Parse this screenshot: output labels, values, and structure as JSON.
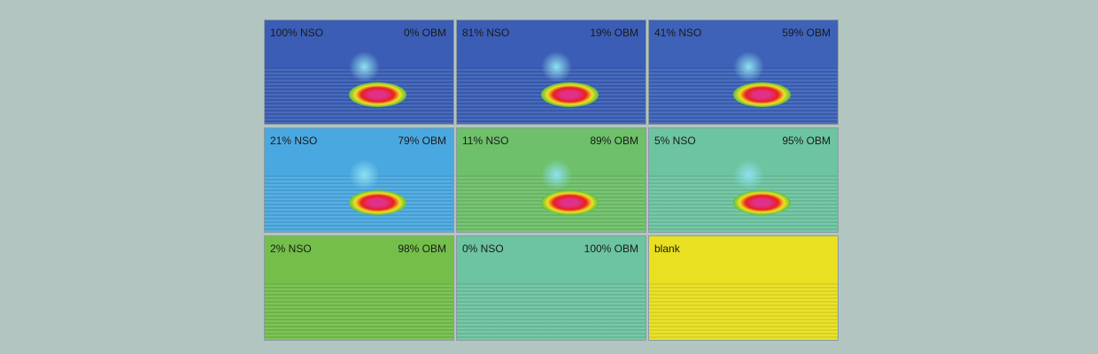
{
  "panels": [
    {
      "nso": "100% NSO",
      "obm": "0% OBM",
      "bg": "#3b5db5",
      "blob": true,
      "level": 4
    },
    {
      "nso": "81% NSO",
      "obm": "19% OBM",
      "bg": "#3b5db5",
      "blob": true,
      "level": 4
    },
    {
      "nso": "41% NSO",
      "obm": "59% OBM",
      "bg": "#3d62b8",
      "blob": true,
      "level": 4
    },
    {
      "nso": "21% NSO",
      "obm": "79% OBM",
      "bg": "#4aa8e0",
      "blob": true,
      "level": 3
    },
    {
      "nso": "11% NSO",
      "obm": "89% OBM",
      "bg": "#6ec06a",
      "blob": true,
      "level": 2
    },
    {
      "nso": "5% NSO",
      "obm": "95% OBM",
      "bg": "#6cc4a0",
      "blob": true,
      "level": 1
    },
    {
      "nso": "2% NSO",
      "obm": "98% OBM",
      "bg": "#74bf4a",
      "blob": false,
      "level": 0
    },
    {
      "nso": "0% NSO",
      "obm": "100% OBM",
      "bg": "#6cc4a0",
      "blob": false,
      "level": 0
    },
    {
      "nso": "blank",
      "obm": "",
      "bg": "#e8e020",
      "blob": false,
      "level": 0
    }
  ]
}
